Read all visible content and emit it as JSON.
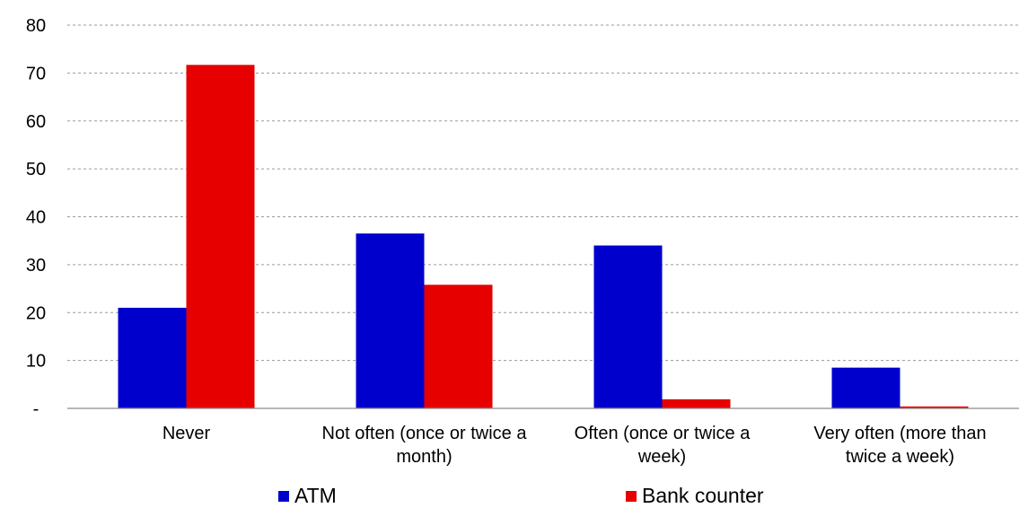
{
  "chart_data": {
    "type": "bar",
    "categories": [
      [
        "Never"
      ],
      [
        "Not often (once or twice a",
        "month)"
      ],
      [
        "Often (once or twice a",
        "week)"
      ],
      [
        "Very often (more than",
        "twice a week)"
      ]
    ],
    "series": [
      {
        "name": "ATM",
        "color": "#0000cc",
        "values": [
          21,
          36.5,
          34,
          8.5
        ]
      },
      {
        "name": "Bank counter",
        "color": "#e60000",
        "values": [
          71.7,
          25.8,
          1.9,
          0.4
        ]
      }
    ],
    "yticks": [
      "-",
      "10",
      "20",
      "30",
      "40",
      "50",
      "60",
      "70",
      "80"
    ],
    "ylim": [
      0,
      80
    ],
    "grid": true,
    "legend": "bottom"
  }
}
